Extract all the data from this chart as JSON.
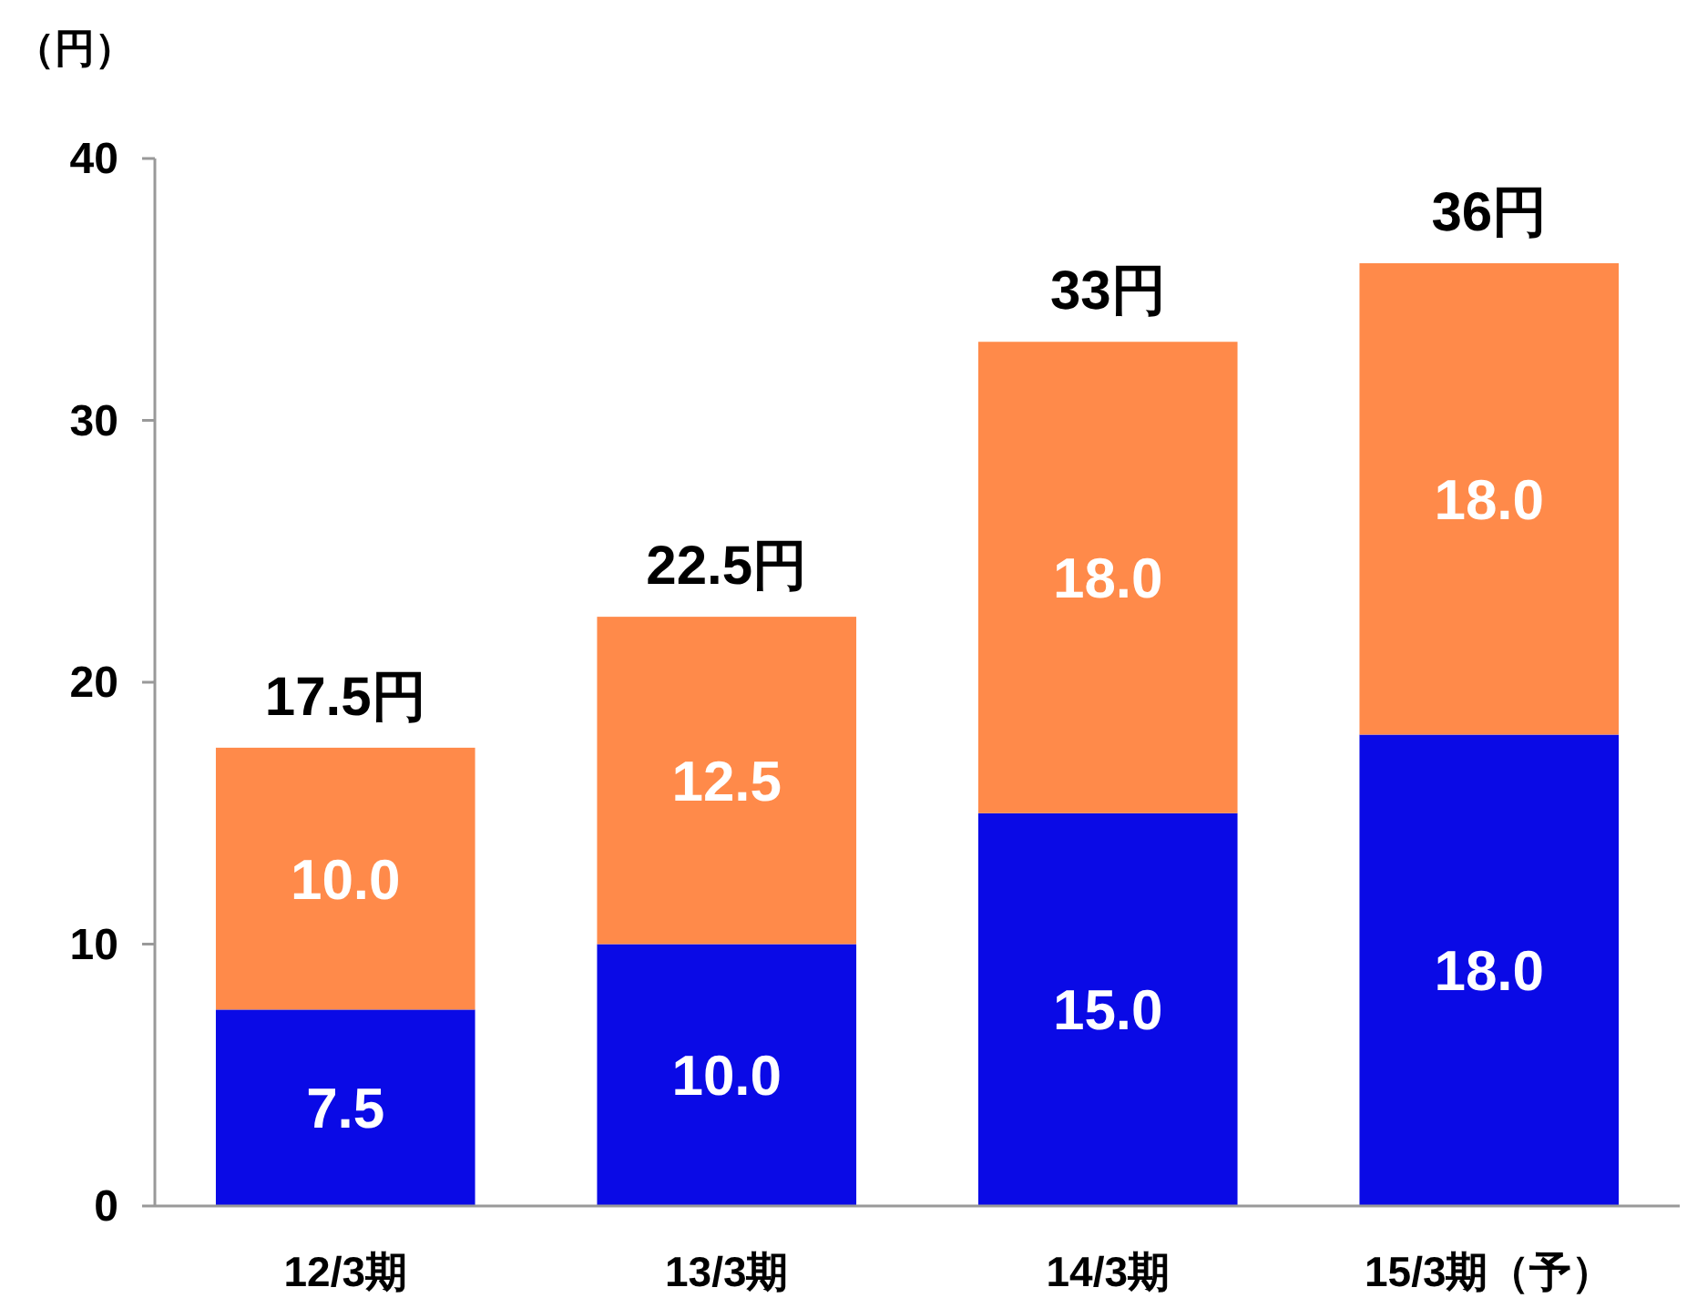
{
  "chart_data": {
    "type": "bar",
    "stacked": true,
    "ylabel": "（円）",
    "categories": [
      "12/3期",
      "13/3期",
      "14/3期",
      "15/3期（予）"
    ],
    "series": [
      {
        "color": "#0a0ae6",
        "values": [
          7.5,
          10.0,
          15.0,
          18.0
        ],
        "value_labels": [
          "7.5",
          "10.0",
          "15.0",
          "18.0"
        ]
      },
      {
        "color": "#ff8a4a",
        "values": [
          10.0,
          12.5,
          18.0,
          18.0
        ],
        "value_labels": [
          "10.0",
          "12.5",
          "18.0",
          "18.0"
        ]
      }
    ],
    "ylim": [
      0,
      40
    ],
    "yticks": [
      0,
      10,
      20,
      30,
      40
    ],
    "totals": [
      "17.5円",
      "22.5円",
      "33円",
      "36円"
    ]
  }
}
